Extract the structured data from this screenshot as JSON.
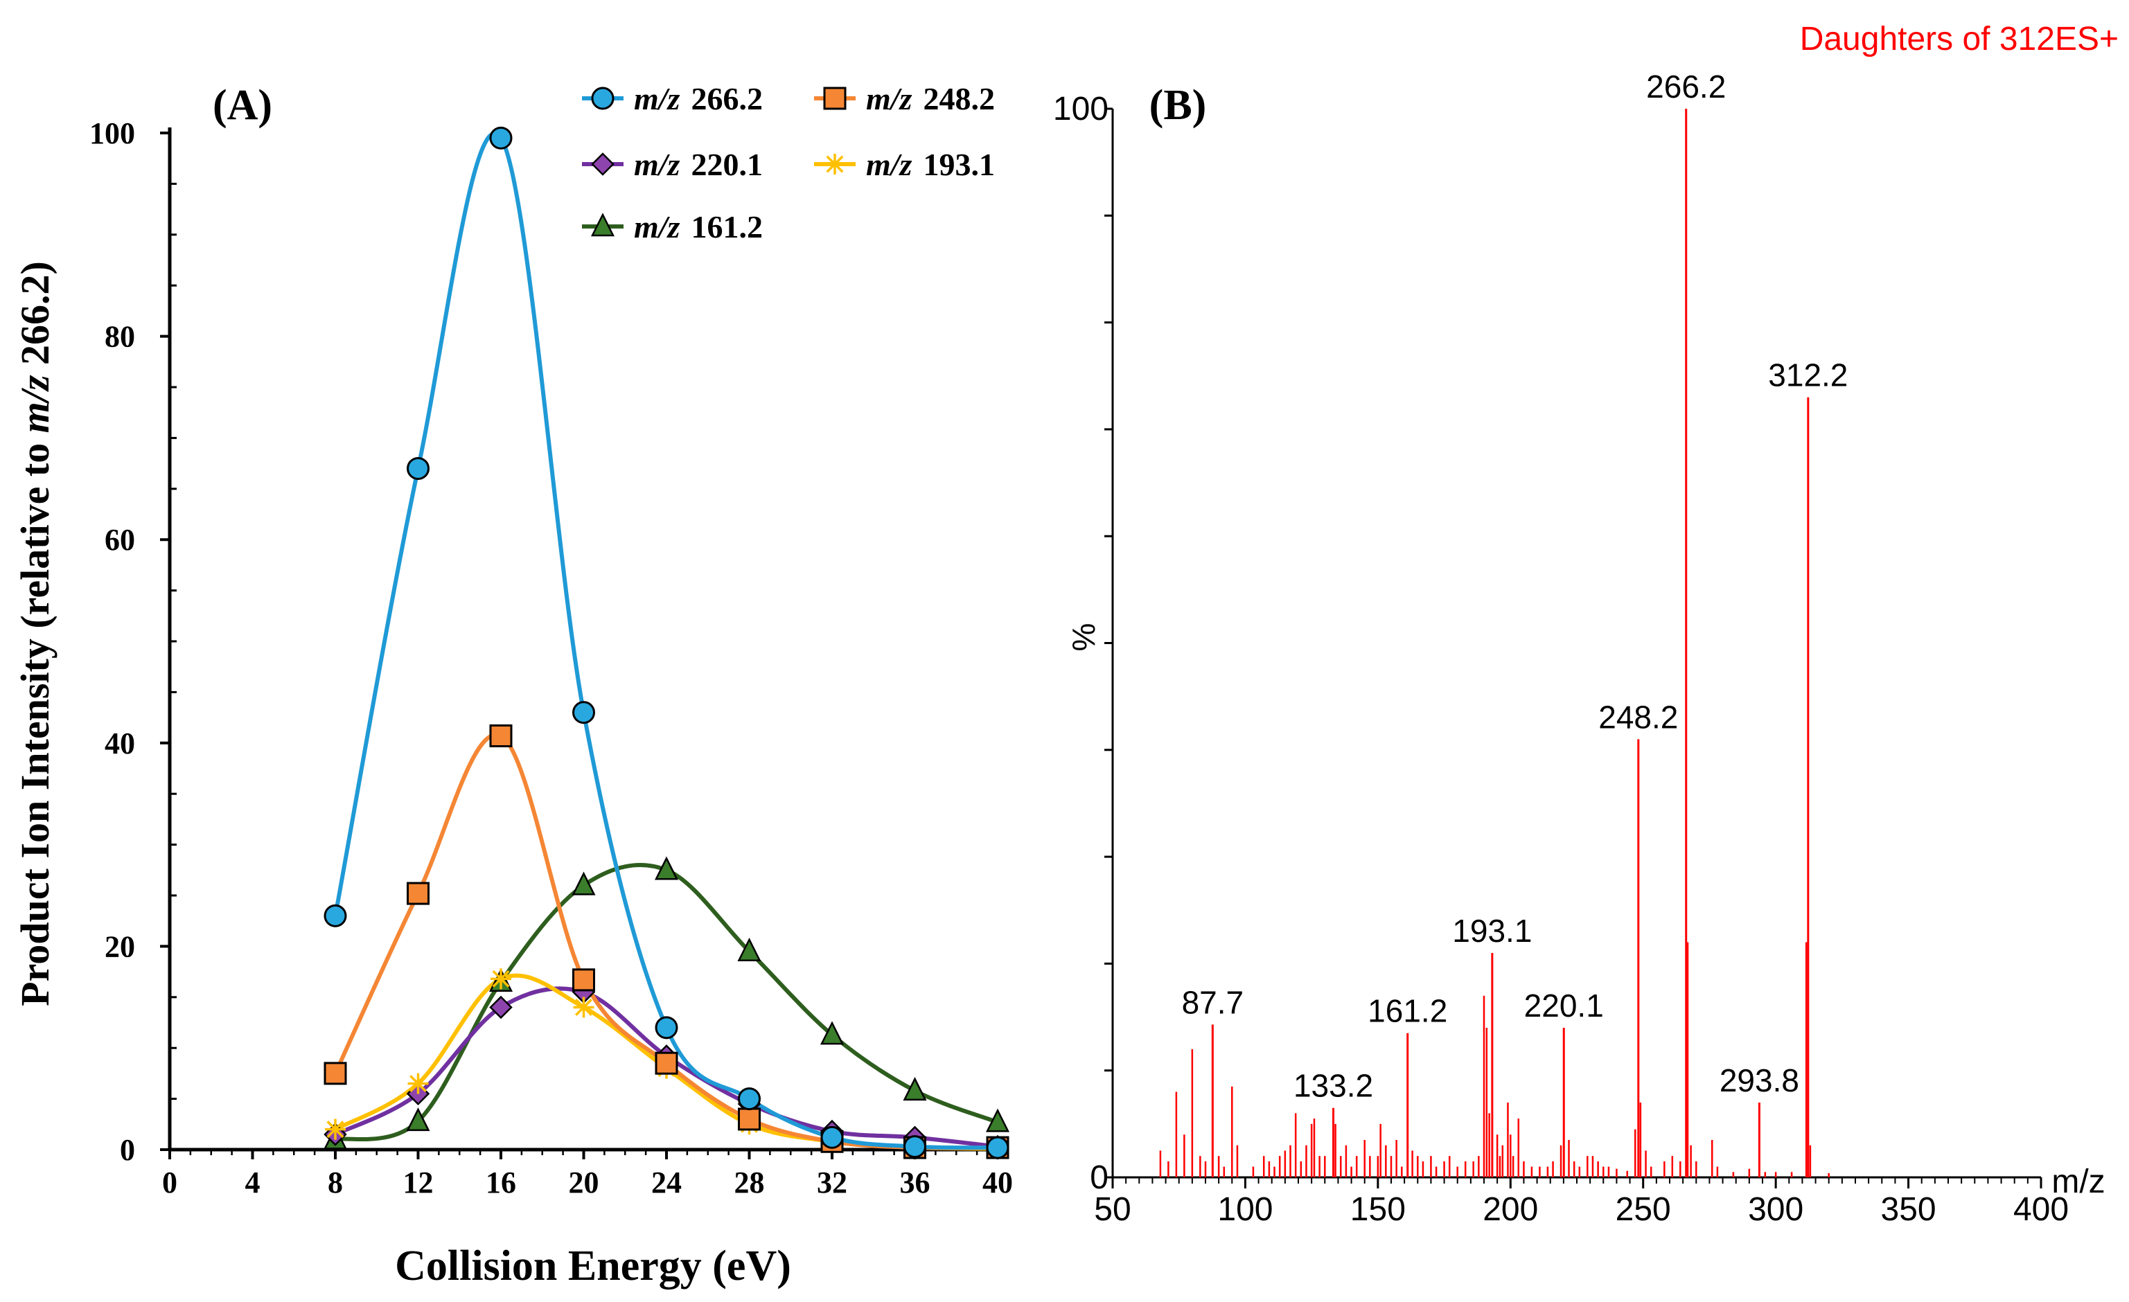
{
  "chart_data": [
    {
      "type": "line",
      "panel_label": "(A)",
      "xlabel": "Collision Energy (eV)",
      "ylabel_parts": [
        "Product Ion Intensity (relative to ",
        "m/z",
        " 266.2)"
      ],
      "xlim": [
        0,
        40
      ],
      "ylim": [
        0,
        100
      ],
      "xticks": [
        0,
        4,
        8,
        12,
        16,
        20,
        24,
        28,
        32,
        36,
        40
      ],
      "yticks": [
        0,
        20,
        40,
        60,
        80,
        100
      ],
      "x": [
        8,
        12,
        16,
        20,
        24,
        28,
        32,
        36,
        40
      ],
      "series": [
        {
          "name": "m/z 266.2",
          "prefix": "m/z",
          "label": "266.2",
          "color": "#1f9ad6",
          "fill": "#29a8e0",
          "marker": "circle",
          "values": [
            23,
            67,
            99.5,
            43,
            12,
            5,
            1.2,
            0.3,
            0.2
          ]
        },
        {
          "name": "m/z 248.2",
          "prefix": "m/z",
          "label": "248.2",
          "color": "#f58634",
          "fill": "#f58634",
          "marker": "square",
          "values": [
            7.5,
            25.2,
            40.7,
            16.7,
            8.5,
            3,
            0.8,
            0.2,
            0.2
          ]
        },
        {
          "name": "m/z 220.1",
          "prefix": "m/z",
          "label": "220.1",
          "color": "#7030a0",
          "fill": "#8e44ad",
          "marker": "diamond",
          "values": [
            1.5,
            5.5,
            14,
            15.5,
            9.2,
            4.5,
            1.8,
            1.2,
            0.3
          ]
        },
        {
          "name": "m/z 193.1",
          "prefix": "m/z",
          "label": "193.1",
          "color": "#ffc000",
          "fill": "#ffc000",
          "marker": "star",
          "values": [
            2,
            6.5,
            16.8,
            14,
            8,
            2.5,
            0.8,
            0.2,
            0.1
          ]
        },
        {
          "name": "m/z 161.2",
          "prefix": "m/z",
          "label": "161.2",
          "color": "#2e5e1e",
          "fill": "#3a7d2a",
          "marker": "triangle",
          "values": [
            1,
            2.8,
            16.5,
            26,
            27.5,
            19.5,
            11.3,
            5.8,
            2.7
          ]
        }
      ]
    },
    {
      "type": "bar",
      "panel_label": "(B)",
      "title": "Daughters of 312ES+",
      "xlabel": "m/z",
      "ylabel": "%",
      "xlim": [
        50,
        400
      ],
      "ylim": [
        0,
        100
      ],
      "xticks": [
        50,
        100,
        150,
        200,
        250,
        300,
        350,
        400
      ],
      "yticks": [
        0,
        100
      ],
      "bar_color": "#ff0000",
      "peaks": [
        {
          "mz": 266.2,
          "value": 100,
          "label": "266.2"
        },
        {
          "mz": 312.2,
          "value": 73,
          "label": "312.2"
        },
        {
          "mz": 248.2,
          "value": 41,
          "label": "248.2"
        },
        {
          "mz": 193.1,
          "value": 21,
          "label": "193.1"
        },
        {
          "mz": 220.1,
          "value": 14,
          "label": "220.1"
        },
        {
          "mz": 161.2,
          "value": 13.5,
          "label": "161.2"
        },
        {
          "mz": 87.7,
          "value": 14.3,
          "label": "87.7"
        },
        {
          "mz": 133.2,
          "value": 6.5,
          "label": "133.2"
        },
        {
          "mz": 293.8,
          "value": 7,
          "label": "293.8"
        }
      ],
      "minor_peaks": [
        [
          68,
          2.5
        ],
        [
          71,
          1.5
        ],
        [
          74,
          8
        ],
        [
          77,
          4
        ],
        [
          80,
          12
        ],
        [
          83,
          2
        ],
        [
          85,
          1.5
        ],
        [
          90,
          2
        ],
        [
          92,
          1
        ],
        [
          95,
          8.5
        ],
        [
          97,
          3
        ],
        [
          103,
          1
        ],
        [
          107,
          2
        ],
        [
          109,
          1.5
        ],
        [
          111,
          1
        ],
        [
          113,
          2
        ],
        [
          115,
          2.5
        ],
        [
          117,
          3
        ],
        [
          119,
          6
        ],
        [
          121,
          1.5
        ],
        [
          123,
          3
        ],
        [
          125,
          5
        ],
        [
          126,
          5.5
        ],
        [
          128,
          2
        ],
        [
          130,
          2
        ],
        [
          134,
          5
        ],
        [
          136,
          2
        ],
        [
          138,
          3
        ],
        [
          140,
          1
        ],
        [
          142,
          2
        ],
        [
          145,
          3.5
        ],
        [
          147,
          2
        ],
        [
          150,
          2
        ],
        [
          151,
          5
        ],
        [
          153,
          3
        ],
        [
          155,
          2
        ],
        [
          157,
          3.5
        ],
        [
          159,
          1
        ],
        [
          163,
          2.5
        ],
        [
          165,
          2
        ],
        [
          167,
          1.5
        ],
        [
          170,
          2
        ],
        [
          172,
          1
        ],
        [
          175,
          1.5
        ],
        [
          177,
          2
        ],
        [
          180,
          1
        ],
        [
          183,
          1.5
        ],
        [
          186,
          1.5
        ],
        [
          188,
          2
        ],
        [
          190,
          17
        ],
        [
          191,
          14
        ],
        [
          192,
          6
        ],
        [
          195,
          4
        ],
        [
          196,
          2
        ],
        [
          197,
          3
        ],
        [
          199,
          7
        ],
        [
          200,
          4
        ],
        [
          201,
          2
        ],
        [
          203,
          5.5
        ],
        [
          205,
          1.5
        ],
        [
          208,
          1
        ],
        [
          211,
          1
        ],
        [
          214,
          1
        ],
        [
          216,
          1.5
        ],
        [
          219,
          3
        ],
        [
          222,
          3.5
        ],
        [
          224,
          1.5
        ],
        [
          226,
          1
        ],
        [
          229,
          2
        ],
        [
          231,
          2
        ],
        [
          233,
          1.5
        ],
        [
          235,
          1
        ],
        [
          237,
          1
        ],
        [
          240,
          0.8
        ],
        [
          244,
          0.6
        ],
        [
          247,
          4.5
        ],
        [
          249,
          7
        ],
        [
          251,
          2.5
        ],
        [
          253,
          1
        ],
        [
          258,
          1.5
        ],
        [
          261,
          2
        ],
        [
          264,
          1.5
        ],
        [
          266.8,
          22
        ],
        [
          268,
          3
        ],
        [
          270,
          1.5
        ],
        [
          276,
          3.5
        ],
        [
          278,
          1
        ],
        [
          284,
          0.5
        ],
        [
          290,
          0.8
        ],
        [
          296,
          0.5
        ],
        [
          300,
          0.5
        ],
        [
          306,
          0.5
        ],
        [
          311.5,
          22
        ],
        [
          313,
          3
        ],
        [
          320,
          0.4
        ]
      ]
    }
  ]
}
